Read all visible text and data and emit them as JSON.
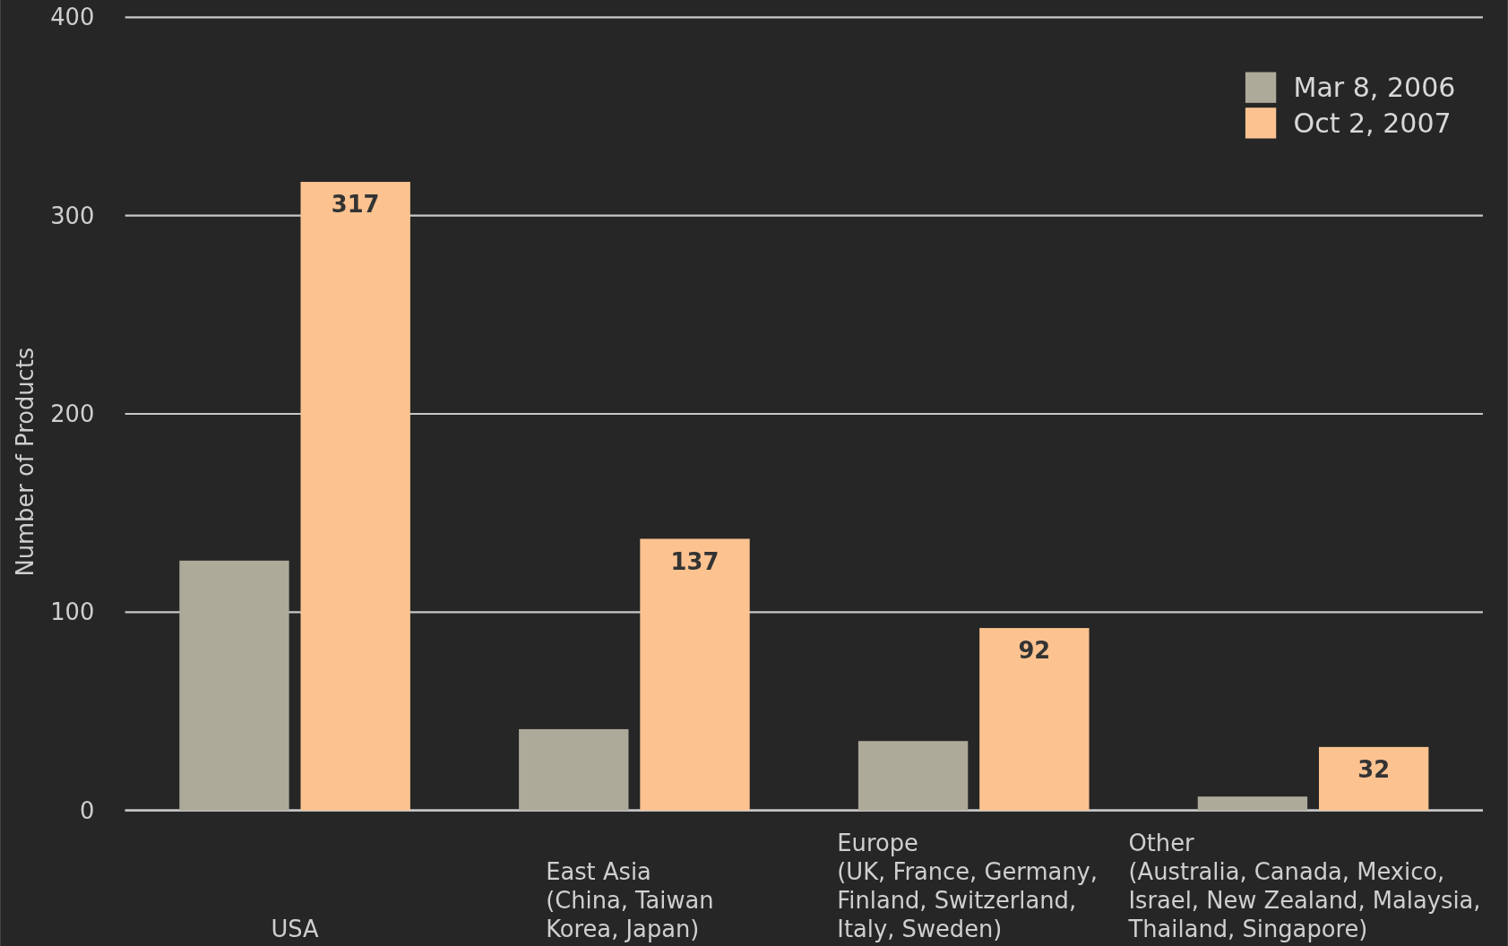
{
  "chart_data": {
    "type": "bar",
    "ylabel": "Number of Products",
    "categories": [
      "USA",
      "East Asia\n(China, Taiwan\nKorea, Japan)",
      "Europe\n(UK, France, Germany,\nFinland, Switzerland,\nItaly, Sweden)",
      "Other\n(Australia, Canada, Mexico,\nIsrael, New Zealand, Malaysia,\nThailand, Singapore)"
    ],
    "series": [
      {
        "name": "Mar 8, 2006",
        "color": "#aeaa9a",
        "values": [
          126,
          41,
          35,
          7
        ]
      },
      {
        "name": "Oct 2, 2007",
        "color": "#fcc391",
        "values": [
          317,
          137,
          92,
          32
        ],
        "value_labels": [
          "317",
          "137",
          "92",
          "32"
        ]
      }
    ],
    "ylim": [
      0,
      400
    ],
    "yticks": [
      0,
      100,
      200,
      300,
      400
    ],
    "grid": "y",
    "legend": "top right"
  }
}
